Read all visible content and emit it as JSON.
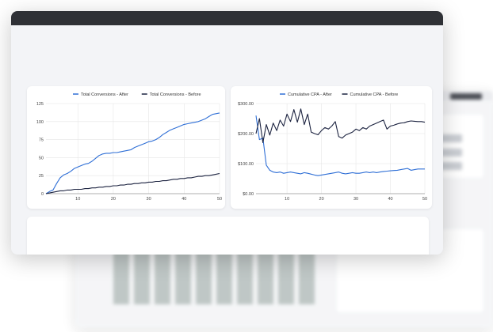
{
  "colors": {
    "after": "#2f6fd6",
    "before": "#1c2340",
    "grid": "#e6e6e6",
    "titlebar": "#2f3136"
  },
  "chart_data": [
    {
      "type": "line",
      "title": "",
      "xlabel": "",
      "ylabel": "",
      "xlim": [
        1,
        50
      ],
      "ylim": [
        0,
        125
      ],
      "xticks": [
        10,
        20,
        30,
        40,
        50
      ],
      "yticks": [
        0,
        25,
        50,
        75,
        100,
        125
      ],
      "yticklabels": [
        "0",
        "25",
        "50",
        "75",
        "100",
        "125"
      ],
      "grid": true,
      "legend": "top-center",
      "series": [
        {
          "name": "Total Conversions - After",
          "color": "#2f6fd6",
          "x": [
            1,
            2,
            3,
            4,
            5,
            6,
            7,
            8,
            9,
            10,
            11,
            12,
            13,
            14,
            15,
            16,
            17,
            18,
            19,
            20,
            21,
            22,
            23,
            24,
            25,
            26,
            27,
            28,
            29,
            30,
            31,
            32,
            33,
            34,
            35,
            36,
            37,
            38,
            39,
            40,
            41,
            42,
            43,
            44,
            45,
            46,
            47,
            48,
            49,
            50
          ],
          "y": [
            0,
            3,
            5,
            14,
            22,
            26,
            28,
            31,
            35,
            37,
            39,
            41,
            42,
            45,
            49,
            53,
            55,
            56,
            56,
            57,
            57,
            58,
            59,
            60,
            61,
            64,
            66,
            68,
            70,
            72,
            73,
            75,
            78,
            82,
            85,
            88,
            90,
            92,
            94,
            96,
            97,
            98,
            99,
            100,
            102,
            104,
            107,
            110,
            111,
            112
          ]
        },
        {
          "name": "Total Conversions - Before",
          "color": "#1c2340",
          "x": [
            1,
            2,
            3,
            4,
            5,
            6,
            7,
            8,
            9,
            10,
            11,
            12,
            13,
            14,
            15,
            16,
            17,
            18,
            19,
            20,
            21,
            22,
            23,
            24,
            25,
            26,
            27,
            28,
            29,
            30,
            31,
            32,
            33,
            34,
            35,
            36,
            37,
            38,
            39,
            40,
            41,
            42,
            43,
            44,
            45,
            46,
            47,
            48,
            49,
            50
          ],
          "y": [
            0,
            1,
            2,
            3,
            4,
            4,
            5,
            5,
            6,
            6,
            6,
            7,
            7,
            8,
            8,
            9,
            9,
            10,
            10,
            11,
            11,
            12,
            12,
            13,
            13,
            14,
            14,
            15,
            15,
            16,
            16,
            17,
            17,
            18,
            18,
            19,
            20,
            20,
            21,
            21,
            22,
            22,
            23,
            24,
            24,
            25,
            25,
            26,
            27,
            28
          ]
        }
      ]
    },
    {
      "type": "line",
      "title": "",
      "xlabel": "",
      "ylabel": "",
      "xlim": [
        1,
        50
      ],
      "ylim": [
        0,
        300
      ],
      "xticks": [
        10,
        20,
        30,
        40,
        50
      ],
      "yticks": [
        0,
        100,
        200,
        300
      ],
      "yticklabels": [
        "$0.00",
        "$100.00",
        "$200.00",
        "$300.00"
      ],
      "grid": true,
      "legend": "top-center",
      "series": [
        {
          "name": "Cumulative CPA - After",
          "color": "#2f6fd6",
          "x": [
            1,
            2,
            3,
            4,
            5,
            6,
            7,
            8,
            9,
            10,
            11,
            12,
            13,
            14,
            15,
            16,
            17,
            18,
            19,
            20,
            21,
            22,
            23,
            24,
            25,
            26,
            27,
            28,
            29,
            30,
            31,
            32,
            33,
            34,
            35,
            36,
            37,
            38,
            39,
            40,
            41,
            42,
            43,
            44,
            45,
            46,
            47,
            48,
            49,
            50
          ],
          "y": [
            260,
            180,
            185,
            95,
            78,
            72,
            70,
            72,
            68,
            70,
            72,
            70,
            68,
            66,
            70,
            68,
            65,
            62,
            60,
            62,
            64,
            66,
            68,
            70,
            72,
            68,
            66,
            68,
            70,
            68,
            68,
            70,
            72,
            70,
            72,
            70,
            72,
            74,
            75,
            76,
            77,
            78,
            80,
            82,
            84,
            78,
            80,
            82,
            82,
            82
          ]
        },
        {
          "name": "Cumulative CPA - Before",
          "color": "#1c2340",
          "x": [
            1,
            2,
            3,
            4,
            5,
            6,
            7,
            8,
            9,
            10,
            11,
            12,
            13,
            14,
            15,
            16,
            17,
            18,
            19,
            20,
            21,
            22,
            23,
            24,
            25,
            26,
            27,
            28,
            29,
            30,
            31,
            32,
            33,
            34,
            35,
            36,
            37,
            38,
            39,
            40,
            41,
            42,
            43,
            44,
            45,
            46,
            47,
            48,
            49,
            50
          ],
          "y": [
            200,
            250,
            170,
            230,
            195,
            235,
            210,
            245,
            225,
            265,
            240,
            280,
            238,
            282,
            230,
            265,
            205,
            200,
            196,
            210,
            220,
            215,
            225,
            240,
            190,
            185,
            195,
            200,
            205,
            215,
            210,
            220,
            215,
            225,
            230,
            235,
            240,
            245,
            215,
            225,
            228,
            232,
            235,
            236,
            240,
            242,
            241,
            240,
            240,
            238
          ]
        }
      ]
    }
  ]
}
